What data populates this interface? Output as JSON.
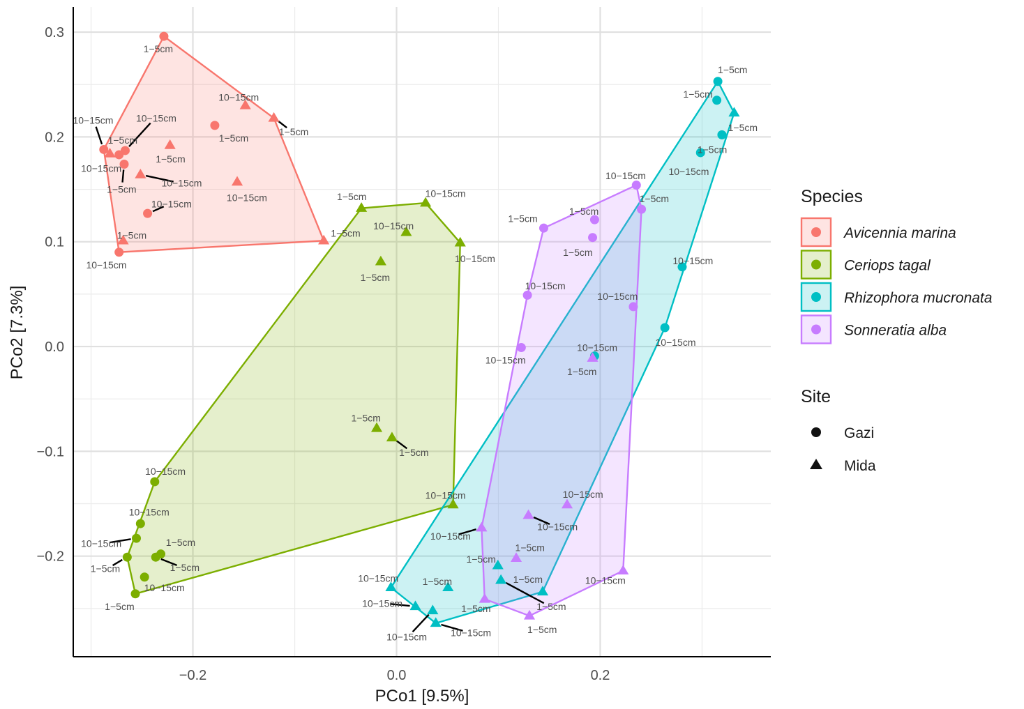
{
  "chart_data": {
    "type": "scatter",
    "title": "",
    "xlabel": "PCo1 [9.5%]",
    "ylabel": "PCo2 [7.3%]",
    "xlim": [
      -0.3175,
      0.3675
    ],
    "ylim": [
      -0.296,
      0.324
    ],
    "xticks": [
      -0.2,
      0.0,
      0.2
    ],
    "xtick_labels": [
      "−0.2",
      "0.0",
      "0.2"
    ],
    "yticks": [
      -0.2,
      -0.1,
      0.0,
      0.1,
      0.2,
      0.3
    ],
    "ytick_labels": [
      "−0.2",
      "−0.1",
      "0.0",
      "0.1",
      "0.2",
      "0.3"
    ],
    "grid": true,
    "legend_position": "right",
    "hulls": true,
    "legend": {
      "species_title": "Species",
      "site_title": "Site",
      "species": [
        {
          "name": "Avicennia marina",
          "color": "#F8766D"
        },
        {
          "name": "Ceriops tagal",
          "color": "#7CAE00"
        },
        {
          "name": "Rhizophora mucronata",
          "color": "#00BFC4"
        },
        {
          "name": "Sonneratia alba",
          "color": "#C77CFF"
        }
      ],
      "sites": [
        {
          "name": "Gazi",
          "shape": "circle"
        },
        {
          "name": "Mida",
          "shape": "triangle"
        }
      ]
    },
    "series": [
      {
        "name": "Avicennia marina",
        "color": "#F8766D",
        "points": [
          {
            "x": -0.2285,
            "y": 0.296,
            "site": "Gazi",
            "label": "1−5cm"
          },
          {
            "x": -0.2875,
            "y": 0.188,
            "site": "Gazi",
            "label": "10−15cm"
          },
          {
            "x": -0.2665,
            "y": 0.187,
            "site": "Gazi",
            "label": "10−15cm"
          },
          {
            "x": -0.2725,
            "y": 0.183,
            "site": "Gazi",
            "label": "1−5cm"
          },
          {
            "x": -0.2675,
            "y": 0.174,
            "site": "Gazi",
            "label": "1−5cm"
          },
          {
            "x": -0.1785,
            "y": 0.211,
            "site": "Gazi",
            "label": "1−5cm"
          },
          {
            "x": -0.2445,
            "y": 0.127,
            "site": "Gazi",
            "label": "10−15cm"
          },
          {
            "x": -0.2725,
            "y": 0.09,
            "site": "Gazi",
            "label": "10−15cm"
          },
          {
            "x": -0.1485,
            "y": 0.23,
            "site": "Mida",
            "label": "10−15cm"
          },
          {
            "x": -0.1205,
            "y": 0.218,
            "site": "Mida",
            "label": "1−5cm"
          },
          {
            "x": -0.2225,
            "y": 0.192,
            "site": "Mida",
            "label": "1−5cm"
          },
          {
            "x": -0.2815,
            "y": 0.184,
            "site": "Mida",
            "label": "10−15cm"
          },
          {
            "x": -0.2515,
            "y": 0.164,
            "site": "Mida",
            "label": "10−15cm"
          },
          {
            "x": -0.1565,
            "y": 0.157,
            "site": "Mida",
            "label": "10−15cm"
          },
          {
            "x": -0.2685,
            "y": 0.101,
            "site": "Mida",
            "label": "1−5cm"
          },
          {
            "x": -0.0715,
            "y": 0.101,
            "site": "Mida",
            "label": "1−5cm"
          }
        ]
      },
      {
        "name": "Ceriops tagal",
        "color": "#7CAE00",
        "points": [
          {
            "x": -0.2375,
            "y": -0.129,
            "site": "Gazi",
            "label": "10−15cm"
          },
          {
            "x": -0.2515,
            "y": -0.169,
            "site": "Gazi",
            "label": "10−15cm"
          },
          {
            "x": -0.2555,
            "y": -0.183,
            "site": "Gazi",
            "label": "10−15cm"
          },
          {
            "x": -0.2645,
            "y": -0.201,
            "site": "Gazi",
            "label": "1−5cm"
          },
          {
            "x": -0.2315,
            "y": -0.198,
            "site": "Gazi",
            "label": "1−5cm"
          },
          {
            "x": -0.2365,
            "y": -0.201,
            "site": "Gazi",
            "label": "1−5cm"
          },
          {
            "x": -0.2475,
            "y": -0.22,
            "site": "Gazi",
            "label": "10−15cm"
          },
          {
            "x": -0.2565,
            "y": -0.236,
            "site": "Gazi",
            "label": "1−5cm"
          },
          {
            "x": -0.0345,
            "y": 0.132,
            "site": "Mida",
            "label": "1−5cm"
          },
          {
            "x": 0.0285,
            "y": 0.137,
            "site": "Mida",
            "label": "10−15cm"
          },
          {
            "x": 0.0095,
            "y": 0.109,
            "site": "Mida",
            "label": "10−15cm"
          },
          {
            "x": 0.0625,
            "y": 0.099,
            "site": "Mida",
            "label": "10−15cm"
          },
          {
            "x": -0.0155,
            "y": 0.081,
            "site": "Mida",
            "label": "1−5cm"
          },
          {
            "x": -0.0195,
            "y": -0.078,
            "site": "Mida",
            "label": "1−5cm"
          },
          {
            "x": -0.0045,
            "y": -0.087,
            "site": "Mida",
            "label": "1−5cm"
          },
          {
            "x": 0.0555,
            "y": -0.151,
            "site": "Mida",
            "label": "10−15cm"
          }
        ]
      },
      {
        "name": "Rhizophora mucronata",
        "color": "#00BFC4",
        "points": [
          {
            "x": 0.3155,
            "y": 0.253,
            "site": "Gazi",
            "label": "1−5cm"
          },
          {
            "x": 0.3145,
            "y": 0.235,
            "site": "Gazi",
            "label": "1−5cm"
          },
          {
            "x": 0.3195,
            "y": 0.202,
            "site": "Gazi",
            "label": "1−5cm"
          },
          {
            "x": 0.2985,
            "y": 0.185,
            "site": "Gazi",
            "label": "10−15cm"
          },
          {
            "x": 0.2805,
            "y": 0.076,
            "site": "Gazi",
            "label": "10−15cm"
          },
          {
            "x": 0.2635,
            "y": 0.018,
            "site": "Gazi",
            "label": "10−15cm"
          },
          {
            "x": 0.1945,
            "y": -0.009,
            "site": "Gazi",
            "label": "10−15cm"
          },
          {
            "x": 0.3315,
            "y": 0.223,
            "site": "Mida",
            "label": "1−5cm"
          },
          {
            "x": 0.0995,
            "y": -0.209,
            "site": "Mida",
            "label": "1−5cm"
          },
          {
            "x": 0.1025,
            "y": -0.223,
            "site": "Mida",
            "label": "1−5cm"
          },
          {
            "x": 0.0505,
            "y": -0.23,
            "site": "Mida",
            "label": "1−5cm"
          },
          {
            "x": 0.1435,
            "y": -0.234,
            "site": "Mida",
            "label": "1−5cm"
          },
          {
            "x": -0.0055,
            "y": -0.23,
            "site": "Mida",
            "label": "10−15cm"
          },
          {
            "x": 0.0185,
            "y": -0.248,
            "site": "Mida",
            "label": "10−15cm"
          },
          {
            "x": 0.0355,
            "y": -0.252,
            "site": "Mida",
            "label": "10−15cm"
          },
          {
            "x": 0.0385,
            "y": -0.264,
            "site": "Mida",
            "label": "10−15cm"
          }
        ]
      },
      {
        "name": "Sonneratia alba",
        "color": "#C77CFF",
        "points": [
          {
            "x": 0.2355,
            "y": 0.154,
            "site": "Gazi",
            "label": "10−15cm"
          },
          {
            "x": 0.2405,
            "y": 0.131,
            "site": "Gazi",
            "label": "1−5cm"
          },
          {
            "x": 0.1945,
            "y": 0.121,
            "site": "Gazi",
            "label": "1−5cm"
          },
          {
            "x": 0.1445,
            "y": 0.113,
            "site": "Gazi",
            "label": "1−5cm"
          },
          {
            "x": 0.1925,
            "y": 0.104,
            "site": "Gazi",
            "label": "1−5cm"
          },
          {
            "x": 0.1285,
            "y": 0.049,
            "site": "Gazi",
            "label": "10−15cm"
          },
          {
            "x": 0.2325,
            "y": 0.038,
            "site": "Gazi",
            "label": "10−15cm"
          },
          {
            "x": 0.1225,
            "y": -0.001,
            "site": "Gazi",
            "label": "10−15cm"
          },
          {
            "x": 0.1925,
            "y": -0.011,
            "site": "Mida",
            "label": "1−5cm"
          },
          {
            "x": 0.1675,
            "y": -0.151,
            "site": "Mida",
            "label": "10−15cm"
          },
          {
            "x": 0.1295,
            "y": -0.161,
            "site": "Mida",
            "label": "10−15cm"
          },
          {
            "x": 0.0835,
            "y": -0.173,
            "site": "Mida",
            "label": "10−15cm"
          },
          {
            "x": 0.1175,
            "y": -0.202,
            "site": "Mida",
            "label": "1−5cm"
          },
          {
            "x": 0.2225,
            "y": -0.214,
            "site": "Mida",
            "label": "10−15cm"
          },
          {
            "x": 0.0865,
            "y": -0.241,
            "site": "Mida",
            "label": "1−5cm"
          },
          {
            "x": 0.1305,
            "y": -0.257,
            "site": "Mida",
            "label": "1−5cm"
          }
        ]
      }
    ],
    "label_positions": [
      [
        "Avicennia marina",
        "1−5cm",
        -0.234,
        0.284
      ],
      [
        "Avicennia marina",
        "10−15cm",
        -0.298,
        0.216
      ],
      [
        "Avicennia marina",
        "10−15cm",
        -0.236,
        0.218
      ],
      [
        "Avicennia marina",
        "1−5cm",
        -0.269,
        0.197
      ],
      [
        "Avicennia marina",
        "1−5cm",
        -0.27,
        0.15
      ],
      [
        "Avicennia marina",
        "1−5cm",
        -0.16,
        0.199
      ],
      [
        "Avicennia marina",
        "10−15cm",
        -0.221,
        0.136
      ],
      [
        "Avicennia marina",
        "10−15cm",
        -0.285,
        0.078
      ],
      [
        "Avicennia marina",
        "10−15cm",
        -0.155,
        0.238
      ],
      [
        "Avicennia marina",
        "1−5cm",
        -0.101,
        0.205
      ],
      [
        "Avicennia marina",
        "1−5cm",
        -0.222,
        0.179
      ],
      [
        "Avicennia marina",
        "10−15cm",
        -0.29,
        0.17
      ],
      [
        "Avicennia marina",
        "10−15cm",
        -0.211,
        0.156
      ],
      [
        "Avicennia marina",
        "10−15cm",
        -0.147,
        0.142
      ],
      [
        "Avicennia marina",
        "1−5cm",
        -0.26,
        0.106
      ],
      [
        "Avicennia marina",
        "1−5cm",
        -0.05,
        0.108
      ],
      [
        "Ceriops tagal",
        "10−15cm",
        -0.227,
        -0.119
      ],
      [
        "Ceriops tagal",
        "10−15cm",
        -0.243,
        -0.158
      ],
      [
        "Ceriops tagal",
        "10−15cm",
        -0.29,
        -0.188
      ],
      [
        "Ceriops tagal",
        "1−5cm",
        -0.286,
        -0.212
      ],
      [
        "Ceriops tagal",
        "1−5cm",
        -0.212,
        -0.187
      ],
      [
        "Ceriops tagal",
        "1−5cm",
        -0.208,
        -0.211
      ],
      [
        "Ceriops tagal",
        "10−15cm",
        -0.228,
        -0.23
      ],
      [
        "Ceriops tagal",
        "1−5cm",
        -0.272,
        -0.248
      ],
      [
        "Ceriops tagal",
        "1−5cm",
        -0.044,
        0.143
      ],
      [
        "Ceriops tagal",
        "10−15cm",
        0.048,
        0.146
      ],
      [
        "Ceriops tagal",
        "10−15cm",
        -0.003,
        0.115
      ],
      [
        "Ceriops tagal",
        "10−15cm",
        0.077,
        0.084
      ],
      [
        "Ceriops tagal",
        "1−5cm",
        -0.021,
        0.066
      ],
      [
        "Ceriops tagal",
        "1−5cm",
        -0.03,
        -0.068
      ],
      [
        "Ceriops tagal",
        "1−5cm",
        0.017,
        -0.101
      ],
      [
        "Ceriops tagal",
        "10−15cm",
        0.048,
        -0.142
      ],
      [
        "Rhizophora mucronata",
        "1−5cm",
        0.33,
        0.264
      ],
      [
        "Rhizophora mucronata",
        "1−5cm",
        0.296,
        0.241
      ],
      [
        "Rhizophora mucronata",
        "1−5cm",
        0.34,
        0.209
      ],
      [
        "Rhizophora mucronata",
        "10−15cm",
        0.287,
        0.167
      ],
      [
        "Rhizophora mucronata",
        "10−15cm",
        0.291,
        0.082
      ],
      [
        "Rhizophora mucronata",
        "10−15cm",
        0.274,
        0.004
      ],
      [
        "Rhizophora mucronata",
        "10−15cm",
        0.197,
        -0.001
      ],
      [
        "Rhizophora mucronata",
        "1−5cm",
        0.31,
        0.188
      ],
      [
        "Rhizophora mucronata",
        "1−5cm",
        0.083,
        -0.203
      ],
      [
        "Rhizophora mucronata",
        "1−5cm",
        0.129,
        -0.222
      ],
      [
        "Rhizophora mucronata",
        "1−5cm",
        0.04,
        -0.224
      ],
      [
        "Rhizophora mucronata",
        "1−5cm",
        0.152,
        -0.248
      ],
      [
        "Rhizophora mucronata",
        "10−15cm",
        -0.018,
        -0.221
      ],
      [
        "Rhizophora mucronata",
        "10−15cm",
        -0.014,
        -0.245
      ],
      [
        "Rhizophora mucronata",
        "10−15cm",
        0.073,
        -0.273
      ],
      [
        "Rhizophora mucronata",
        "10−15cm",
        0.01,
        -0.277
      ],
      [
        "Sonneratia alba",
        "10−15cm",
        0.225,
        0.163
      ],
      [
        "Sonneratia alba",
        "1−5cm",
        0.253,
        0.141
      ],
      [
        "Sonneratia alba",
        "1−5cm",
        0.184,
        0.129
      ],
      [
        "Sonneratia alba",
        "1−5cm",
        0.124,
        0.122
      ],
      [
        "Sonneratia alba",
        "1−5cm",
        0.178,
        0.09
      ],
      [
        "Sonneratia alba",
        "10−15cm",
        0.146,
        0.058
      ],
      [
        "Sonneratia alba",
        "10−15cm",
        0.217,
        0.048
      ],
      [
        "Sonneratia alba",
        "10−15cm",
        0.107,
        -0.013
      ],
      [
        "Sonneratia alba",
        "1−5cm",
        0.182,
        -0.024
      ],
      [
        "Sonneratia alba",
        "10−15cm",
        0.183,
        -0.141
      ],
      [
        "Sonneratia alba",
        "10−15cm",
        0.158,
        -0.172
      ],
      [
        "Sonneratia alba",
        "10−15cm",
        0.053,
        -0.181
      ],
      [
        "Sonneratia alba",
        "1−5cm",
        0.131,
        -0.192
      ],
      [
        "Sonneratia alba",
        "10−15cm",
        0.205,
        -0.223
      ],
      [
        "Sonneratia alba",
        "1−5cm",
        0.078,
        -0.25
      ],
      [
        "Sonneratia alba",
        "1−5cm",
        0.143,
        -0.27
      ]
    ]
  }
}
